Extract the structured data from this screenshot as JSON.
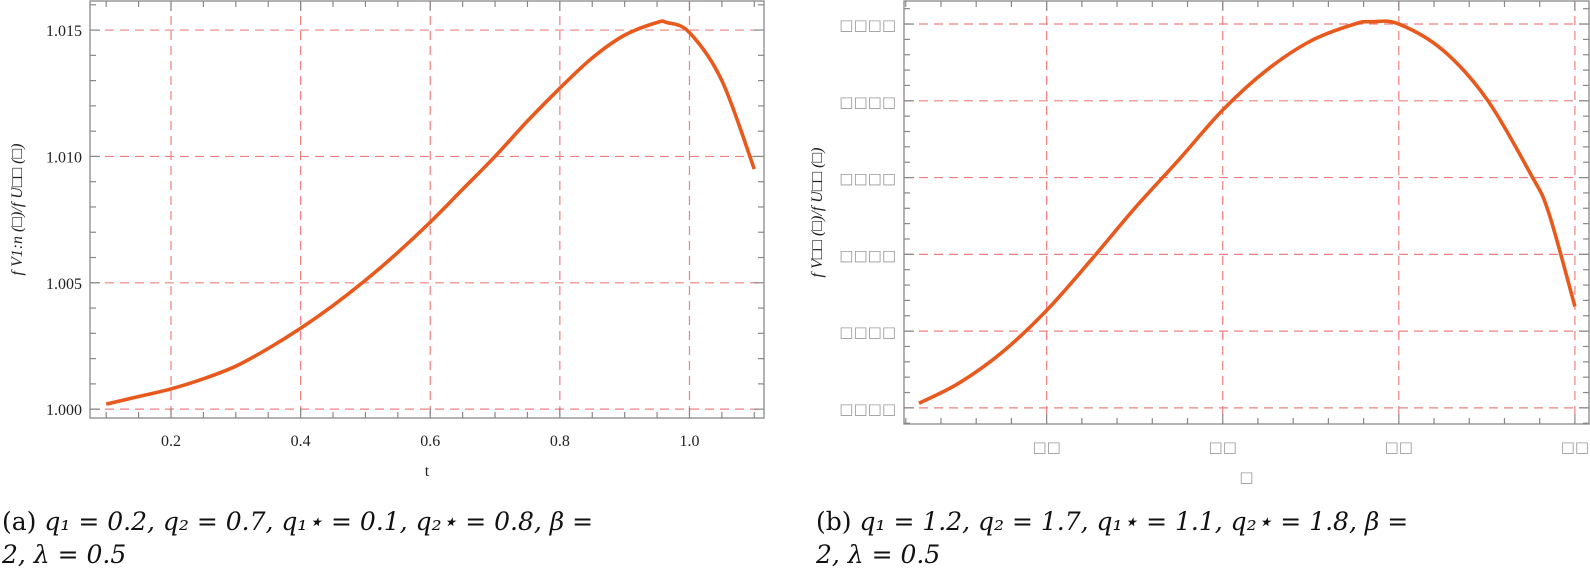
{
  "figure": {
    "panels": [
      {
        "id": "a",
        "caption_label": "(a)",
        "caption_line1": "q₁ = 0.2, q₂ = 0.7, q₁⋆ = 0.1, q₂⋆ = 0.8, β =",
        "caption_line2": "2, λ = 0.5",
        "xlabel": "t",
        "ylabel": "f V1:n (□)/f U□□ (□)"
      },
      {
        "id": "b",
        "caption_label": "(b)",
        "caption_line1": "q₁ = 1.2, q₂ = 1.7, q₁⋆ = 1.1, q₂⋆ = 1.8, β =",
        "caption_line2": "2, λ = 0.5",
        "xlabel": "□",
        "ylabel": "f V□□ (□)/f U□□ (□)"
      }
    ]
  },
  "colors": {
    "curve": "#E8591E",
    "grid": "#EE8080",
    "frame": "#888888",
    "tofu": "#9A9A9A"
  },
  "chart_data": [
    {
      "type": "line",
      "title": "",
      "xlabel": "t",
      "ylabel": "f_{V_{1:n}}(t) / f_{U_{□□}}(t)",
      "xlim": [
        0.075,
        1.115
      ],
      "ylim": [
        0.99965,
        1.01615
      ],
      "xticks": [
        0.2,
        0.4,
        0.6,
        0.8,
        1.0
      ],
      "xtick_labels": [
        "0.2",
        "0.4",
        "0.6",
        "0.8",
        "1.0"
      ],
      "yticks": [
        1.0,
        1.005,
        1.01,
        1.015
      ],
      "ytick_labels": [
        "1.000",
        "1.005",
        "1.010",
        "1.015"
      ],
      "grid": true,
      "grid_style": "dashed",
      "legend": null,
      "series": [
        {
          "name": "ratio",
          "x": [
            0.1,
            0.15,
            0.2,
            0.25,
            0.3,
            0.35,
            0.4,
            0.45,
            0.5,
            0.55,
            0.6,
            0.65,
            0.7,
            0.75,
            0.8,
            0.85,
            0.9,
            0.95,
            0.965,
            1.0,
            1.05,
            1.1
          ],
          "y": [
            1.0002,
            1.0005,
            1.0008,
            1.0012,
            1.0017,
            1.0024,
            1.0032,
            1.0041,
            1.0051,
            1.0062,
            1.0074,
            1.0087,
            1.01,
            1.0114,
            1.0127,
            1.0139,
            1.0148,
            1.0153,
            1.0153,
            1.0149,
            1.013,
            1.0095
          ]
        }
      ]
    },
    {
      "type": "line",
      "title": "",
      "xlabel": "□",
      "ylabel": "f_{V_{□□}}(□) / f_{U_{□□}}(□)",
      "note": "tick labels render as missing-glyph boxes; values given in relative grid units (x major ticks 1..4, y major ticks 0..5)",
      "xlim": [
        0.19,
        4.08
      ],
      "ylim": [
        -0.21,
        5.3
      ],
      "xticks": [
        1,
        2,
        3,
        4
      ],
      "xtick_labels": [
        "□□",
        "□□",
        "□□",
        "□□"
      ],
      "yticks": [
        0,
        1,
        2,
        3,
        4,
        5
      ],
      "ytick_labels": [
        "□□□□",
        "□□□□",
        "□□□□",
        "□□□□",
        "□□□□",
        "□□□□"
      ],
      "grid": true,
      "grid_style": "dashed",
      "legend": null,
      "series": [
        {
          "name": "ratio",
          "x": [
            0.275,
            0.5,
            0.75,
            1.0,
            1.25,
            1.5,
            1.75,
            2.0,
            2.25,
            2.5,
            2.75,
            2.85,
            3.0,
            3.25,
            3.5,
            3.75,
            3.85,
            4.0
          ],
          "y": [
            0.06,
            0.32,
            0.73,
            1.27,
            1.92,
            2.6,
            3.23,
            3.88,
            4.4,
            4.78,
            5.0,
            5.03,
            5.0,
            4.66,
            4.02,
            3.04,
            2.55,
            1.32
          ]
        }
      ]
    }
  ]
}
